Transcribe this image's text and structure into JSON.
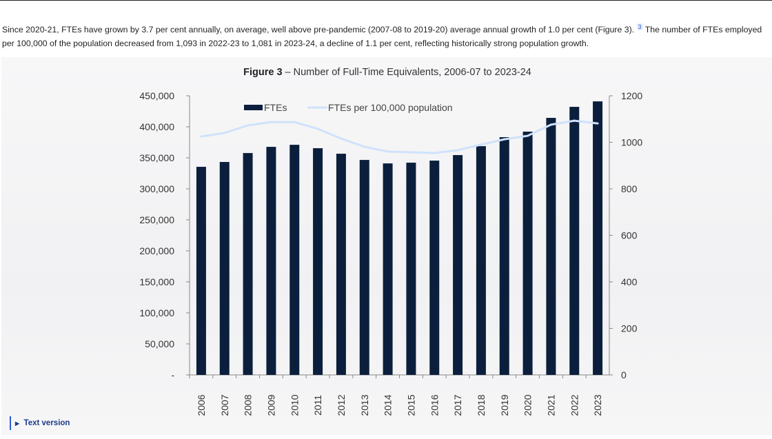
{
  "paragraph": {
    "text_before": "Since 2020-21, FTEs have grown by 3.7 per cent annually, on average, well above pre-pandemic (2007-08 to 2019-20) average annual growth of 1.0 per cent (Figure 3).",
    "footnote": "3",
    "text_after": " The number of FTEs employed per 100,000 of the population decreased from 1,093 in 2022-23 to 1,081 in 2023-24, a decline of 1.1 per cent, reflecting historically strong population growth."
  },
  "text_version_label": "Text version",
  "chart_data": {
    "type": "bar",
    "title_bold": "Figure 3",
    "title_rest": " – Number of Full-Time Equivalents, 2006-07 to 2023-24",
    "categories": [
      "2006",
      "2007",
      "2008",
      "2009",
      "2010",
      "2011",
      "2012",
      "2013",
      "2014",
      "2015",
      "2016",
      "2017",
      "2018",
      "2019",
      "2020",
      "2021",
      "2022",
      "2023"
    ],
    "series": [
      {
        "name": "FTEs",
        "type": "bar",
        "axis": "left",
        "color": "#0b1f3d",
        "values": [
          335500,
          343300,
          357700,
          367700,
          371000,
          365500,
          356600,
          346600,
          341000,
          342200,
          345500,
          354400,
          368800,
          383300,
          392200,
          414400,
          432200,
          441000
        ]
      },
      {
        "name": "FTEs per 100,000 population",
        "type": "line",
        "axis": "right",
        "color": "#cfe2fb",
        "values": [
          1025,
          1040,
          1073,
          1087,
          1087,
          1058,
          1016,
          981,
          960,
          957,
          954,
          966,
          990,
          1013,
          1028,
          1076,
          1093,
          1081
        ]
      }
    ],
    "y_left": {
      "lim": [
        0,
        450000
      ],
      "ticks": [
        "-",
        "50,000",
        "100,000",
        "150,000",
        "200,000",
        "250,000",
        "300,000",
        "350,000",
        "400,000",
        "450,000"
      ]
    },
    "y_right": {
      "lim": [
        0,
        1200
      ],
      "ticks": [
        "0",
        "200",
        "400",
        "600",
        "800",
        "1000",
        "1200"
      ]
    },
    "grid": false,
    "legend": "top-left"
  }
}
